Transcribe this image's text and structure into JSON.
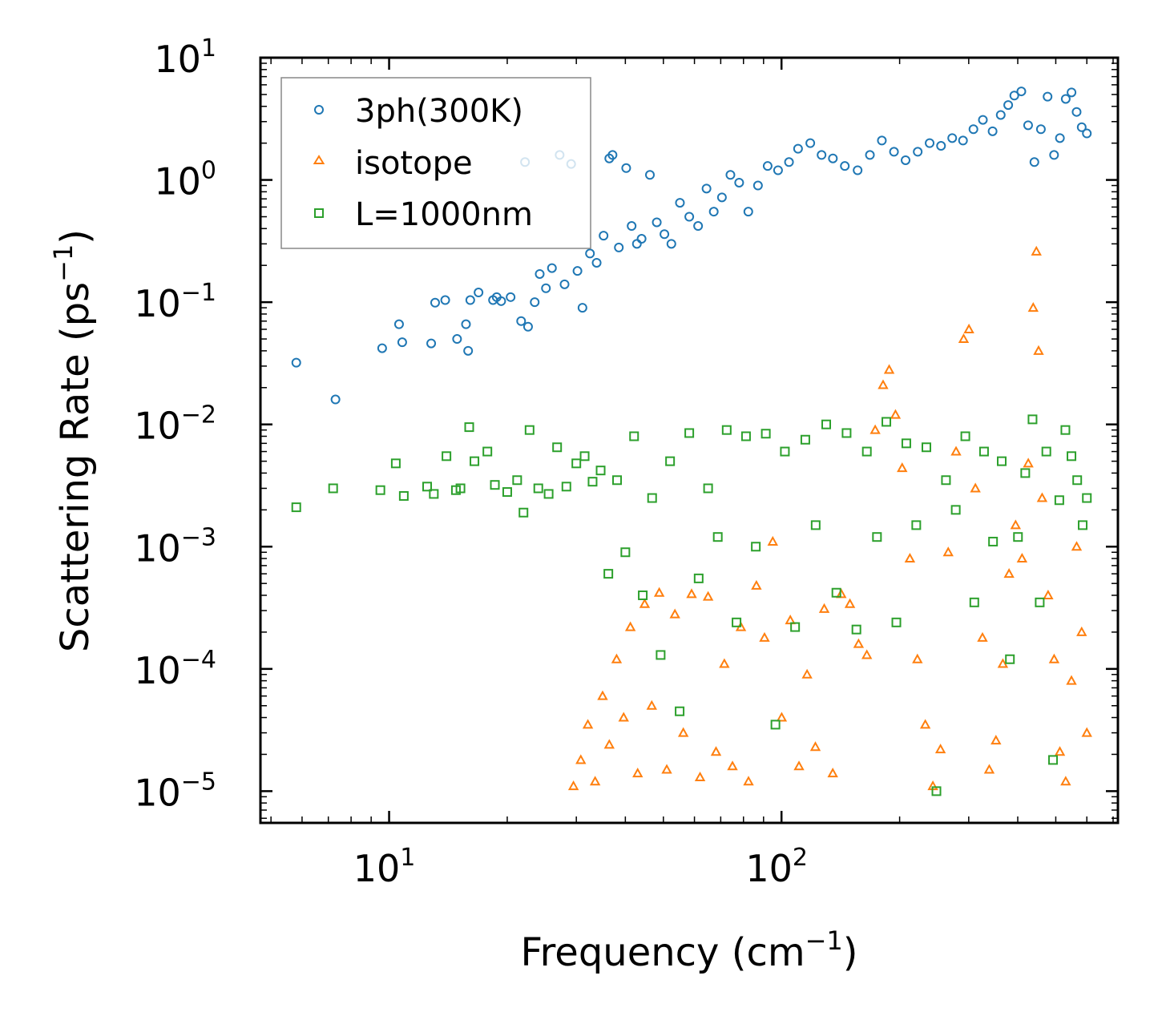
{
  "chart_data": {
    "type": "scatter",
    "title": "",
    "xlabel": "Frequency (cm",
    "xlabel_sup": "−1",
    "xlabel_end": ")",
    "ylabel": "Scattering Rate (ps",
    "ylabel_sup": "−1",
    "ylabel_end": ")",
    "xscale": "log",
    "yscale": "log",
    "xlim": [
      4.7,
      720
    ],
    "ylim": [
      5.5e-06,
      10
    ],
    "xticks": [
      {
        "value": 10,
        "base": "10",
        "exp": "1"
      },
      {
        "value": 100,
        "base": "10",
        "exp": "2"
      }
    ],
    "yticks": [
      {
        "value": 10,
        "base": "10",
        "exp": "1"
      },
      {
        "value": 1,
        "base": "10",
        "exp": "0"
      },
      {
        "value": 0.1,
        "base": "10",
        "exp": "−1"
      },
      {
        "value": 0.01,
        "base": "10",
        "exp": "−2"
      },
      {
        "value": 0.001,
        "base": "10",
        "exp": "−3"
      },
      {
        "value": 0.0001,
        "base": "10",
        "exp": "−4"
      },
      {
        "value": 1e-05,
        "base": "10",
        "exp": "−5"
      }
    ],
    "legend_position": "top-left",
    "series": [
      {
        "name": "3ph(300K)",
        "marker": "circle",
        "color": "#1f77b4",
        "x": [
          5.8,
          7.3,
          9.6,
          10.6,
          10.8,
          12.8,
          13.1,
          13.9,
          14.9,
          15.7,
          15.9,
          16.1,
          16.9,
          18.4,
          18.8,
          19.3,
          20.4,
          21.7,
          22.2,
          22.6,
          23.5,
          24.2,
          25.1,
          26.0,
          27.2,
          28.0,
          29.1,
          30.2,
          31.1,
          32.5,
          33.8,
          35.2,
          36.4,
          37.1,
          38.5,
          40.2,
          41.5,
          42.8,
          44.0,
          46.2,
          48.1,
          50.3,
          52.4,
          55.1,
          58.2,
          61.3,
          64.4,
          67.2,
          70.5,
          74.1,
          78.0,
          82.3,
          87.1,
          92.2,
          98.0,
          104.5,
          110.2,
          118.4,
          126.5,
          135.2,
          145.0,
          156.3,
          168.0,
          180.2,
          193.5,
          207.1,
          222.4,
          238.5,
          255.0,
          272.3,
          290.1,
          308.4,
          326.0,
          345.1,
          362.0,
          378.2,
          392.0,
          408.5,
          425.1,
          441.0,
          458.2,
          476.5,
          495.0,
          512.3,
          530.1,
          548.4,
          565.0,
          582.2,
          600.0
        ],
        "y": [
          0.032,
          0.016,
          0.042,
          0.066,
          0.047,
          0.046,
          0.099,
          0.104,
          0.05,
          0.066,
          0.04,
          0.104,
          0.12,
          0.104,
          0.11,
          0.102,
          0.11,
          0.07,
          1.4,
          0.063,
          0.1,
          0.17,
          0.13,
          0.19,
          1.6,
          0.14,
          1.35,
          0.18,
          0.09,
          0.25,
          0.21,
          0.35,
          1.5,
          1.6,
          0.28,
          1.25,
          0.42,
          0.3,
          0.33,
          1.1,
          0.45,
          0.36,
          0.3,
          0.65,
          0.5,
          0.42,
          0.85,
          0.55,
          0.72,
          1.1,
          0.95,
          0.55,
          0.9,
          1.3,
          1.2,
          1.4,
          1.8,
          2.0,
          1.6,
          1.5,
          1.3,
          1.2,
          1.6,
          2.1,
          1.7,
          1.45,
          1.7,
          2.0,
          1.9,
          2.2,
          2.1,
          2.6,
          3.1,
          2.5,
          3.4,
          4.1,
          4.9,
          5.3,
          2.8,
          1.4,
          2.6,
          4.8,
          1.6,
          2.2,
          4.6,
          5.2,
          3.6,
          2.7,
          2.4
        ]
      },
      {
        "name": "isotope",
        "marker": "triangle",
        "color": "#ff7f0e",
        "x": [
          29.5,
          30.8,
          32.1,
          33.5,
          35.0,
          36.4,
          38.0,
          39.6,
          41.2,
          43.0,
          44.8,
          46.7,
          48.8,
          51.0,
          53.5,
          56.2,
          59.0,
          62.0,
          65.0,
          68.1,
          71.5,
          75.0,
          78.8,
          82.4,
          86.3,
          90.5,
          95.0,
          100.1,
          105.3,
          110.8,
          116.2,
          122.0,
          128.5,
          135.1,
          142.0,
          149.4,
          157.2,
          165.0,
          173.3,
          181.5,
          188.1,
          195.2,
          203.0,
          212.4,
          222.0,
          232.5,
          243.1,
          254.2,
          266.0,
          278.5,
          291.2,
          300.4,
          312.0,
          325.2,
          338.4,
          352.0,
          366.5,
          380.1,
          395.0,
          410.2,
          425.5,
          438.0,
          446.2,
          452.0,
          461.5,
          478.0,
          495.2,
          512.1,
          530.0,
          548.2,
          565.1,
          582.0,
          600.0
        ],
        "y": [
          1.1e-05,
          1.8e-05,
          3.5e-05,
          1.2e-05,
          6e-05,
          2.4e-05,
          0.00012,
          4e-05,
          0.00022,
          1.4e-05,
          0.00034,
          5e-05,
          0.00042,
          1.5e-05,
          0.00028,
          3e-05,
          0.00041,
          1.3e-05,
          0.00039,
          2.1e-05,
          0.00011,
          1.6e-05,
          0.00022,
          1.2e-05,
          0.00048,
          0.00018,
          0.0011,
          4e-05,
          0.00025,
          1.6e-05,
          9e-05,
          2.3e-05,
          0.00031,
          1.4e-05,
          0.00041,
          0.00034,
          0.00016,
          0.00013,
          0.009,
          0.021,
          0.028,
          0.012,
          0.0044,
          0.0008,
          0.00012,
          3.5e-05,
          1.1e-05,
          2.2e-05,
          0.0009,
          0.006,
          0.05,
          0.06,
          0.003,
          0.00018,
          1.5e-05,
          2.6e-05,
          0.00011,
          0.0006,
          0.0015,
          0.0008,
          0.0048,
          0.09,
          0.26,
          0.04,
          0.0025,
          0.0004,
          0.00012,
          2.1e-05,
          1.2e-05,
          8e-05,
          0.001,
          0.0002,
          3e-05
        ]
      },
      {
        "name": "L=1000nm",
        "marker": "square",
        "color": "#2ca02c",
        "x": [
          5.8,
          7.2,
          9.5,
          10.4,
          10.9,
          12.5,
          13.0,
          14.0,
          14.8,
          15.2,
          16.0,
          16.5,
          17.8,
          18.6,
          20.0,
          21.2,
          22.0,
          22.8,
          24.0,
          25.5,
          26.8,
          28.3,
          30.0,
          31.5,
          33.0,
          34.6,
          36.2,
          38.1,
          40.0,
          42.1,
          44.3,
          46.8,
          49.2,
          52.0,
          55.0,
          58.2,
          61.5,
          65.0,
          68.8,
          72.5,
          76.8,
          81.2,
          86.0,
          91.2,
          96.5,
          102.0,
          108.3,
          115.0,
          122.2,
          130.0,
          138.0,
          146.5,
          155.2,
          165.0,
          175.1,
          185.0,
          196.2,
          208.0,
          220.5,
          234.0,
          248.2,
          262.5,
          278.0,
          294.1,
          310.0,
          328.2,
          346.0,
          364.1,
          382.0,
          400.5,
          418.0,
          436.2,
          455.0,
          473.1,
          492.0,
          510.5,
          529.0,
          548.2,
          567.0,
          585.5,
          600.0
        ],
        "y": [
          0.0021,
          0.003,
          0.0029,
          0.0048,
          0.0026,
          0.0031,
          0.0027,
          0.0055,
          0.0029,
          0.003,
          0.0095,
          0.005,
          0.006,
          0.0032,
          0.0028,
          0.0035,
          0.0019,
          0.009,
          0.003,
          0.0027,
          0.0065,
          0.0031,
          0.0048,
          0.0055,
          0.0034,
          0.0042,
          0.0006,
          0.0035,
          0.0009,
          0.008,
          0.0004,
          0.0025,
          0.00013,
          0.005,
          4.5e-05,
          0.0085,
          0.00055,
          0.003,
          0.0012,
          0.009,
          0.00024,
          0.008,
          0.001,
          0.0084,
          3.5e-05,
          0.006,
          0.00022,
          0.0075,
          0.0015,
          0.01,
          0.00042,
          0.0085,
          0.00021,
          0.006,
          0.0012,
          0.0105,
          0.00024,
          0.007,
          0.0015,
          0.0065,
          1e-05,
          0.0035,
          0.002,
          0.008,
          0.00035,
          0.006,
          0.0011,
          0.005,
          0.00012,
          0.0012,
          0.004,
          0.011,
          0.00035,
          0.006,
          1.8e-05,
          0.0024,
          0.009,
          0.0055,
          0.0035,
          0.0015,
          0.0025
        ]
      }
    ]
  }
}
